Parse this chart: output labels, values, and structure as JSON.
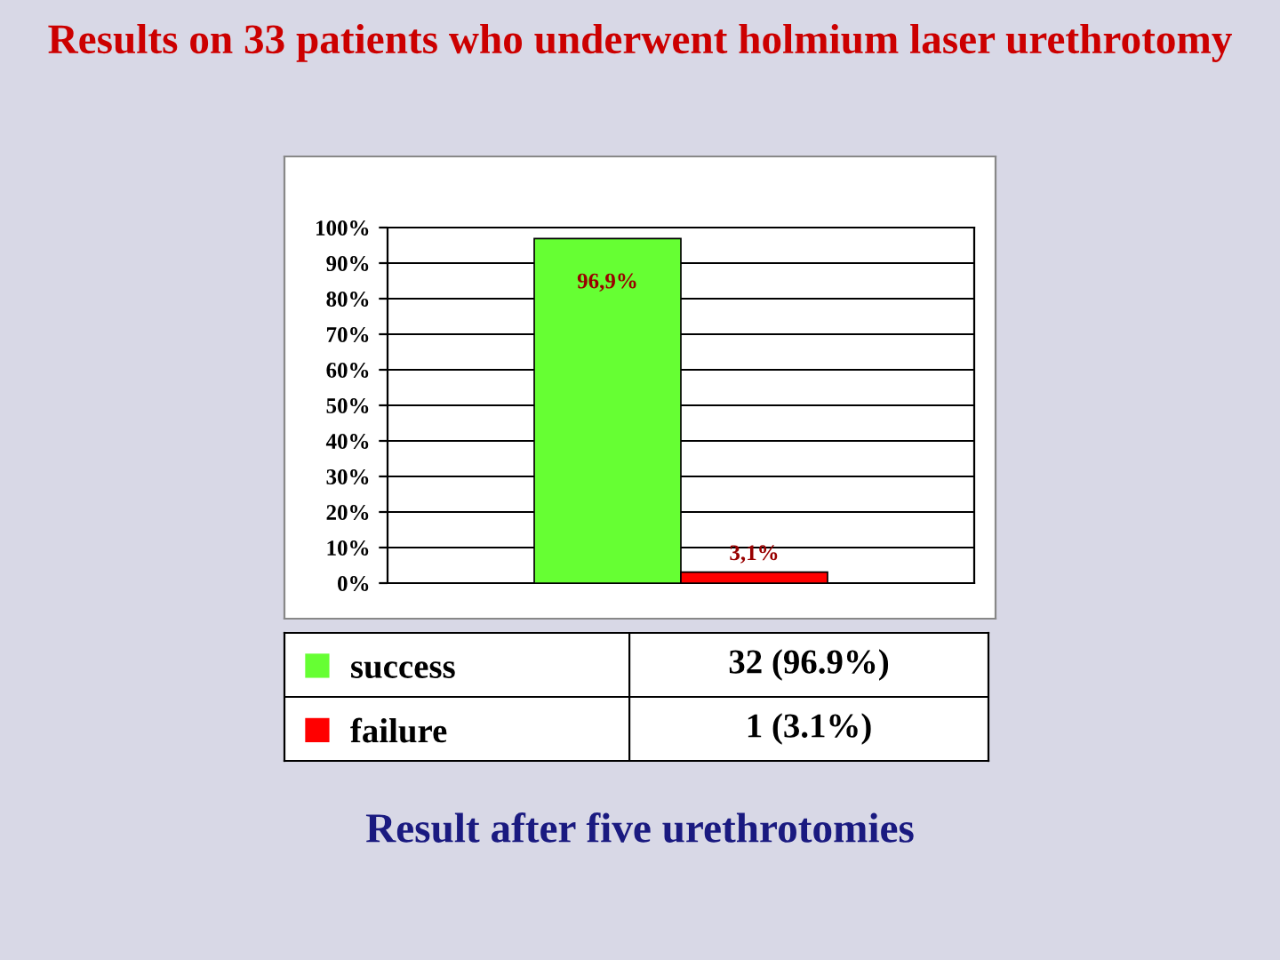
{
  "chart_data": {
    "type": "bar",
    "title": "Results on 33 patients who underwent holmium laser urethrotomy",
    "categories": [
      null
    ],
    "series": [
      {
        "name": "success",
        "color": "#66ff33",
        "values": [
          96.9
        ],
        "value_labels": [
          "96,9%"
        ]
      },
      {
        "name": "failure",
        "color": "#ff0000",
        "values": [
          3.1
        ],
        "value_labels": [
          "3,1%"
        ]
      }
    ],
    "ylim": [
      0,
      100
    ],
    "yticks": [
      {
        "value": 0,
        "label": "0%"
      },
      {
        "value": 10,
        "label": "10%"
      },
      {
        "value": 20,
        "label": "20%"
      },
      {
        "value": 30,
        "label": "30%"
      },
      {
        "value": 40,
        "label": "40%"
      },
      {
        "value": 50,
        "label": "50%"
      },
      {
        "value": 60,
        "label": "60%"
      },
      {
        "value": 70,
        "label": "70%"
      },
      {
        "value": 80,
        "label": "80%"
      },
      {
        "value": 90,
        "label": "90%"
      },
      {
        "value": 100,
        "label": "100%"
      }
    ],
    "grid": "y",
    "legend": "bottom",
    "annotations": [
      "32 (96.9%)",
      "1 (3.1%)",
      "Result after five urethrotomies"
    ]
  }
}
